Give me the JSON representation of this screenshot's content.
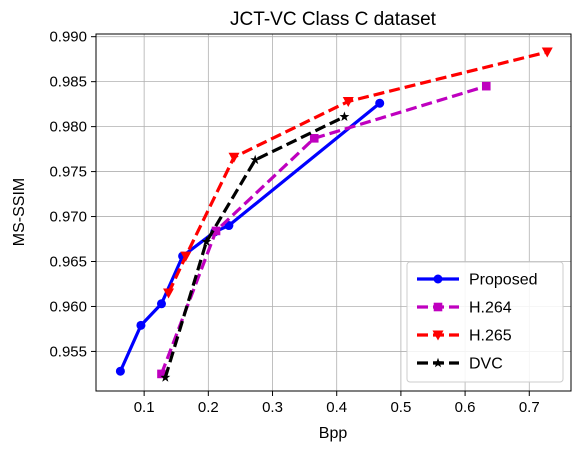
{
  "chart_data": {
    "type": "line",
    "title": "JCT-VC Class C dataset",
    "xlabel": "Bpp",
    "ylabel": "MS-SSIM",
    "xlim": [
      0.025,
      0.765
    ],
    "ylim": [
      0.9506,
      0.9903
    ],
    "xticks": [
      0.1,
      0.2,
      0.3,
      0.4,
      0.5,
      0.6,
      0.7
    ],
    "xtick_labels": [
      "0.1",
      "0.2",
      "0.3",
      "0.4",
      "0.5",
      "0.6",
      "0.7"
    ],
    "yticks": [
      0.955,
      0.96,
      0.965,
      0.97,
      0.975,
      0.98,
      0.985,
      0.99
    ],
    "ytick_labels": [
      "0.955",
      "0.960",
      "0.965",
      "0.970",
      "0.975",
      "0.980",
      "0.985",
      "0.990"
    ],
    "grid": true,
    "legend_position": "lower-right",
    "series": [
      {
        "name": "Proposed",
        "color": "#0000ff",
        "dash": "solid",
        "marker": "circle",
        "x": [
          0.063,
          0.095,
          0.127,
          0.16,
          0.21,
          0.232,
          0.467
        ],
        "y": [
          0.9528,
          0.9579,
          0.9603,
          0.9656,
          0.9683,
          0.969,
          0.9826
        ]
      },
      {
        "name": "H.264",
        "color": "#bf00bf",
        "dash": "dashed",
        "marker": "square",
        "x": [
          0.127,
          0.212,
          0.365,
          0.633
        ],
        "y": [
          0.9525,
          0.9684,
          0.9787,
          0.9845
        ]
      },
      {
        "name": "H.265",
        "color": "#ff0000",
        "dash": "dashed",
        "marker": "triangle-down",
        "x": [
          0.138,
          0.165,
          0.24,
          0.418,
          0.728
        ],
        "y": [
          0.9615,
          0.9656,
          0.9766,
          0.9828,
          0.9883
        ]
      },
      {
        "name": "DVC",
        "color": "#000000",
        "dash": "dashed",
        "marker": "star",
        "x": [
          0.133,
          0.197,
          0.273,
          0.412
        ],
        "y": [
          0.9521,
          0.9672,
          0.9763,
          0.9811
        ]
      }
    ]
  }
}
